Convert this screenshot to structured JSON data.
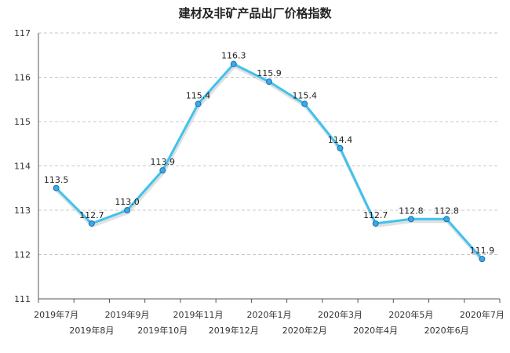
{
  "chart_data": {
    "type": "line",
    "title": "建材及非矿产品出厂价格指数",
    "xlabel": "",
    "ylabel": "",
    "categories": [
      "2019年7月",
      "2019年8月",
      "2019年9月",
      "2019年10月",
      "2019年11月",
      "2019年12月",
      "2020年1月",
      "2020年2月",
      "2020年3月",
      "2020年4月",
      "2020年5月",
      "2020年6月",
      "2020年7月"
    ],
    "series": [
      {
        "values": [
          113.5,
          112.7,
          113.0,
          113.9,
          115.4,
          116.3,
          115.9,
          115.4,
          114.4,
          112.7,
          112.8,
          112.8,
          111.9
        ]
      }
    ],
    "data_labels": [
      "113.5",
      "112.7",
      "113.0",
      "113.9",
      "115.4",
      "116.3",
      "115.9",
      "115.4",
      "114.4",
      "112.7",
      "112.8",
      "112.8",
      "111.9"
    ],
    "ylim": [
      111,
      117
    ],
    "yticks": [
      111,
      112,
      113,
      114,
      115,
      116,
      117
    ],
    "grid": "horizontal-dashed",
    "legend": "none",
    "colors": {
      "line": "#3ec3ec",
      "marker_fill": "#3aa9e6",
      "marker_stroke": "#1f6fb0",
      "grid": "#c8c8c8",
      "axis": "#555555"
    }
  }
}
